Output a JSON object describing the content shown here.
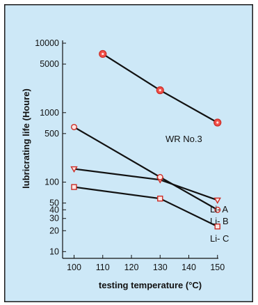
{
  "chart_data": {
    "type": "line",
    "xlabel": "testing temperature (°C)",
    "ylabel": "lubricrating life (Houre)",
    "x_ticks": [
      100,
      110,
      120,
      130,
      140,
      150
    ],
    "y_tick_labels": [
      "10000",
      "5000",
      "1000",
      "500",
      "100",
      "50",
      "40",
      "30",
      "20",
      "10"
    ],
    "xlim": [
      96,
      160
    ],
    "ylim": [
      8,
      10000
    ],
    "y_scale": "log",
    "grid": false,
    "colors": {
      "panel_bg": "#cde8f7",
      "panel_border": "#1a1a1a",
      "line": "#111111",
      "marker_fill": "#f0504a",
      "marker_edge": "#cc2b24"
    },
    "series": [
      {
        "name": "WR No.3",
        "marker": "filled-circle",
        "x": [
          110,
          130,
          150
        ],
        "y": [
          7000,
          2100,
          720
        ]
      },
      {
        "name": "Li- A",
        "marker": "open-triangle",
        "x": [
          100,
          130,
          150
        ],
        "y": [
          155,
          108,
          55
        ]
      },
      {
        "name": "Li- B",
        "marker": "open-circle",
        "x": [
          100,
          130,
          150
        ],
        "y": [
          620,
          118,
          40
        ]
      },
      {
        "name": "Li- C",
        "marker": "open-square",
        "x": [
          100,
          130,
          150
        ],
        "y": [
          85,
          58,
          23
        ]
      }
    ]
  }
}
